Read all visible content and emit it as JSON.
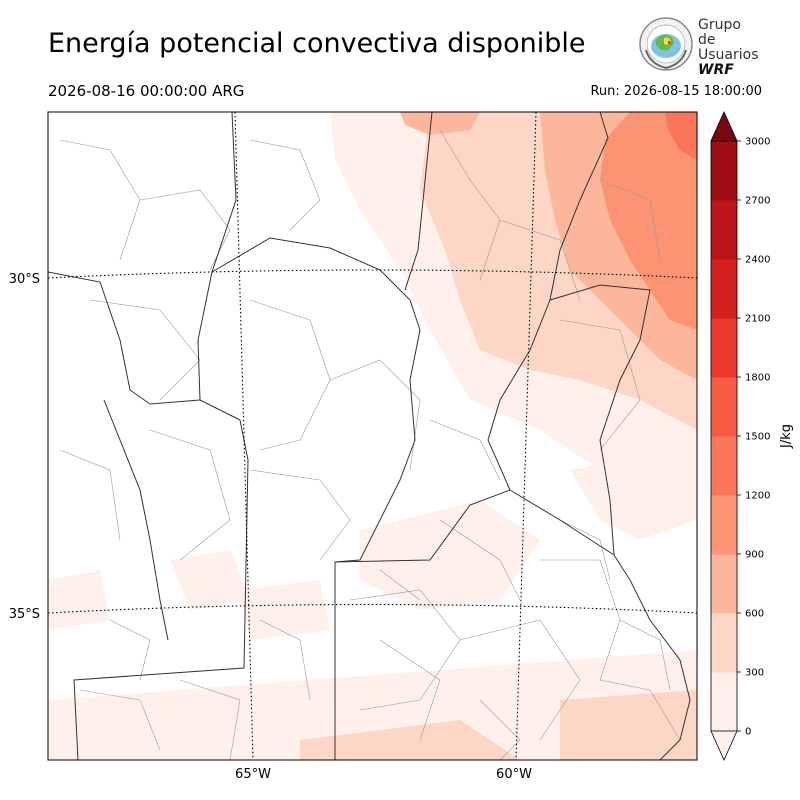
{
  "header": {
    "title": "Energía potencial convectiva disponible",
    "valid_time": "2026-08-16 00:00:00 ARG",
    "run_time": "Run: 2026-08-15 18:00:00"
  },
  "logo": {
    "line1": "Grupo de",
    "line2": "Usuarios",
    "line3": "WRF"
  },
  "map": {
    "lat_labels": [
      "30°S",
      "35°S"
    ],
    "lon_labels": [
      "65°W",
      "60°W"
    ]
  },
  "colorbar": {
    "unit": "J/kg",
    "ticks": [
      "0",
      "300",
      "600",
      "900",
      "1200",
      "1500",
      "1800",
      "2100",
      "2400",
      "2700",
      "3000"
    ],
    "colors": [
      "#fff0eb",
      "#fdd6c6",
      "#fcb69c",
      "#fc9474",
      "#fb7658",
      "#f65a42",
      "#eb3a2c",
      "#d5201f",
      "#bb1519",
      "#9e0d14",
      "#7a0710"
    ]
  }
}
